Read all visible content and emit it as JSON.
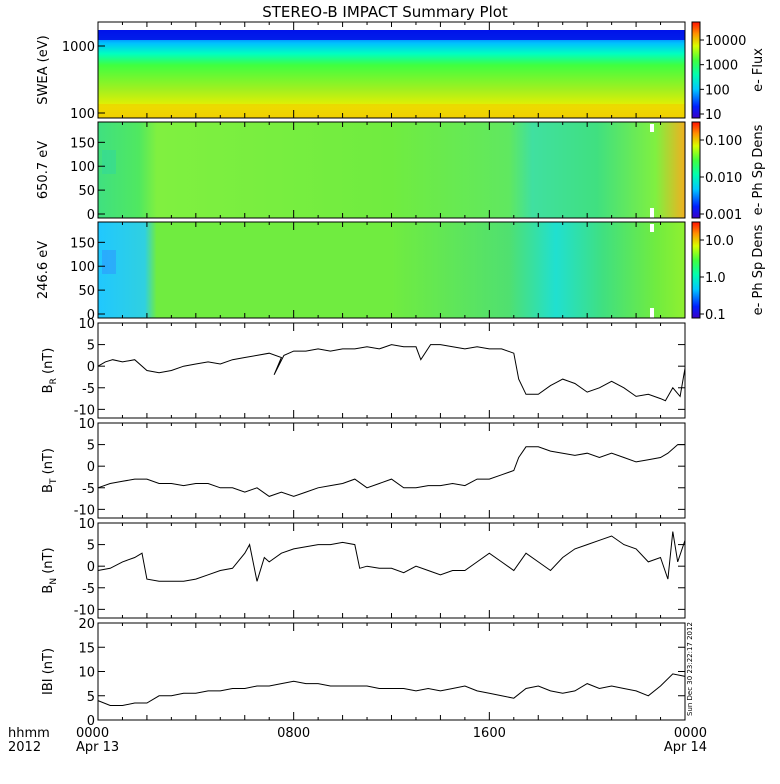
{
  "title": "STEREO-B IMPACT Summary Plot",
  "footer": {
    "label_line1": "hhmm",
    "label_line2": "2012",
    "x_ticks": [
      {
        "t": 0,
        "line1": "0000",
        "line2": "Apr 13"
      },
      {
        "t": 8,
        "line1": "0800",
        "line2": ""
      },
      {
        "t": 16,
        "line1": "1600",
        "line2": ""
      },
      {
        "t": 24,
        "line1": "0000",
        "line2": "Apr 14"
      }
    ]
  },
  "stamp": "Sun Dec 30 23:22:17 2012",
  "chart_data": [
    {
      "type": "heatmap",
      "ylabel": "SWEA (eV)",
      "y_scale": "log",
      "yticks": [
        "1000",
        "100"
      ],
      "colorbar": {
        "label": "e- Flux",
        "ticks": [
          "10000",
          "1000",
          "100",
          "10"
        ],
        "scale": "log",
        "range": [
          10,
          30000
        ]
      },
      "x_range_hours": [
        0,
        24
      ]
    },
    {
      "type": "heatmap",
      "ylabel": "650.7 eV",
      "yticks": [
        "150",
        "100",
        "50",
        "0"
      ],
      "ylim": [
        0,
        180
      ],
      "colorbar": {
        "label": "e- Ph Sp Dens",
        "ticks": [
          "0.100",
          "0.010",
          "0.001"
        ],
        "scale": "log",
        "range": [
          0.001,
          0.1
        ]
      },
      "x_range_hours": [
        0,
        24
      ]
    },
    {
      "type": "heatmap",
      "ylabel": "246.6 eV",
      "yticks": [
        "150",
        "100",
        "50",
        "0"
      ],
      "ylim": [
        0,
        180
      ],
      "colorbar": {
        "label": "e- Ph Sp Dens",
        "ticks": [
          "10.0",
          "1.0",
          "0.1"
        ],
        "scale": "log",
        "range": [
          0.1,
          10
        ]
      },
      "x_range_hours": [
        0,
        24
      ]
    },
    {
      "type": "line",
      "ylabel": "B_R (nT)",
      "ylabel_main": "B",
      "ylabel_sub": "R",
      "ylabel_unit": " (nT)",
      "ylim": [
        -12,
        10
      ],
      "yticks": [
        "10",
        "5",
        "0",
        "-5",
        "-10"
      ],
      "x": [
        0,
        0.3,
        0.6,
        1,
        1.5,
        2,
        2.5,
        3,
        3.5,
        4,
        4.5,
        5,
        5.5,
        6,
        6.5,
        7,
        7.5,
        7.2,
        7.6,
        8,
        8.5,
        9,
        9.5,
        10,
        10.5,
        11,
        11.5,
        12,
        12.5,
        13,
        13.2,
        13.6,
        14,
        14.5,
        15,
        15.5,
        16,
        16.5,
        17,
        17.2,
        17.5,
        18,
        18.5,
        19,
        19.5,
        20,
        20.5,
        21,
        21.5,
        22,
        22.5,
        23,
        23.2,
        23.5,
        23.8,
        24
      ],
      "values": [
        0,
        1,
        1.5,
        1,
        1.5,
        -1,
        -1.5,
        -1,
        0,
        0.5,
        1,
        0.5,
        1.5,
        2,
        2.5,
        3,
        2,
        -2,
        2.5,
        3.5,
        3.5,
        4,
        3.5,
        4,
        4,
        4.5,
        4,
        5,
        4.5,
        4.5,
        1.5,
        5,
        5,
        4.5,
        4,
        4.5,
        4,
        4,
        3,
        -3,
        -6.5,
        -6.5,
        -4.5,
        -3,
        -4,
        -6,
        -5,
        -3.5,
        -5,
        -7,
        -6.5,
        -7.5,
        -8,
        -5,
        -7,
        -0.5
      ]
    },
    {
      "type": "line",
      "ylabel": "B_T (nT)",
      "ylabel_main": "B",
      "ylabel_sub": "T",
      "ylabel_unit": " (nT)",
      "ylim": [
        -12,
        10
      ],
      "yticks": [
        "10",
        "5",
        "0",
        "-5",
        "-10"
      ],
      "x": [
        0,
        0.5,
        1,
        1.5,
        2,
        2.5,
        3,
        3.5,
        4,
        4.5,
        5,
        5.5,
        6,
        6.5,
        7,
        7.5,
        8,
        8.5,
        9,
        9.5,
        10,
        10.5,
        11,
        11.5,
        12,
        12.5,
        13,
        13.5,
        14,
        14.5,
        15,
        15.5,
        16,
        16.5,
        17,
        17.2,
        17.5,
        18,
        18.5,
        19,
        19.5,
        20,
        20.5,
        21,
        21.5,
        22,
        22.5,
        23,
        23.3,
        23.7,
        24
      ],
      "values": [
        -5,
        -4,
        -3.5,
        -3,
        -3,
        -4,
        -4,
        -4.5,
        -4,
        -4,
        -5,
        -5,
        -6,
        -5,
        -7,
        -6,
        -7,
        -6,
        -5,
        -4.5,
        -4,
        -3,
        -5,
        -4,
        -3,
        -5,
        -5,
        -4.5,
        -4.5,
        -4,
        -4.5,
        -3,
        -3,
        -2,
        -1,
        2,
        4.5,
        4.5,
        3.5,
        3,
        2.5,
        3,
        2,
        3,
        2,
        1,
        1.5,
        2,
        3,
        5,
        5
      ]
    },
    {
      "type": "line",
      "ylabel": "B_N (nT)",
      "ylabel_main": "B",
      "ylabel_sub": "N",
      "ylabel_unit": " (nT)",
      "ylim": [
        -12,
        10
      ],
      "yticks": [
        "10",
        "5",
        "0",
        "-5",
        "-10"
      ],
      "x": [
        0,
        0.5,
        1,
        1.5,
        1.8,
        2,
        2.5,
        3,
        3.5,
        4,
        4.5,
        5,
        5.5,
        6,
        6.2,
        6.5,
        6.8,
        7,
        7.5,
        8,
        8.5,
        9,
        9.5,
        10,
        10.5,
        10.7,
        11,
        11.5,
        12,
        12.5,
        13,
        13.5,
        14,
        14.5,
        15,
        15.5,
        16,
        16.5,
        17,
        17.5,
        18,
        18.5,
        19,
        19.5,
        20,
        20.5,
        21,
        21.5,
        22,
        22.5,
        23,
        23.3,
        23.5,
        23.7,
        24
      ],
      "values": [
        -1,
        -0.5,
        1,
        2,
        3,
        -3,
        -3.5,
        -3.5,
        -3.5,
        -3,
        -2,
        -1,
        -0.5,
        3,
        5,
        -3.5,
        2,
        1,
        3,
        4,
        4.5,
        5,
        5,
        5.5,
        5,
        -0.5,
        0,
        -0.5,
        -0.5,
        -1.5,
        0,
        -1,
        -2,
        -1,
        -1,
        1,
        3,
        1,
        -1,
        3,
        1,
        -1,
        2,
        4,
        5,
        6,
        7,
        5,
        4,
        1,
        2,
        -3,
        8,
        1,
        6
      ]
    },
    {
      "type": "line",
      "ylabel": "|B| (nT)",
      "ylabel_main": "IBI (nT)",
      "ylim": [
        0,
        20
      ],
      "yticks": [
        "20",
        "15",
        "10",
        "5",
        "0"
      ],
      "x": [
        0,
        0.5,
        1,
        1.5,
        2,
        2.5,
        3,
        3.5,
        4,
        4.5,
        5,
        5.5,
        6,
        6.5,
        7,
        7.5,
        8,
        8.5,
        9,
        9.5,
        10,
        10.5,
        11,
        11.5,
        12,
        12.5,
        13,
        13.5,
        14,
        14.5,
        15,
        15.5,
        16,
        16.5,
        17,
        17.5,
        18,
        18.5,
        19,
        19.5,
        20,
        20.5,
        21,
        21.5,
        22,
        22.5,
        23,
        23.5,
        24
      ],
      "values": [
        4,
        3,
        3,
        3.5,
        3.5,
        5,
        5,
        5.5,
        5.5,
        6,
        6,
        6.5,
        6.5,
        7,
        7,
        7.5,
        8,
        7.5,
        7.5,
        7,
        7,
        7,
        7,
        6.5,
        6.5,
        6.5,
        6,
        6.5,
        6,
        6.5,
        7,
        6,
        5.5,
        5,
        4.5,
        6.5,
        7,
        6,
        5.5,
        6,
        7.5,
        6.5,
        7,
        6.5,
        6,
        5,
        7,
        9.5,
        9
      ]
    }
  ]
}
